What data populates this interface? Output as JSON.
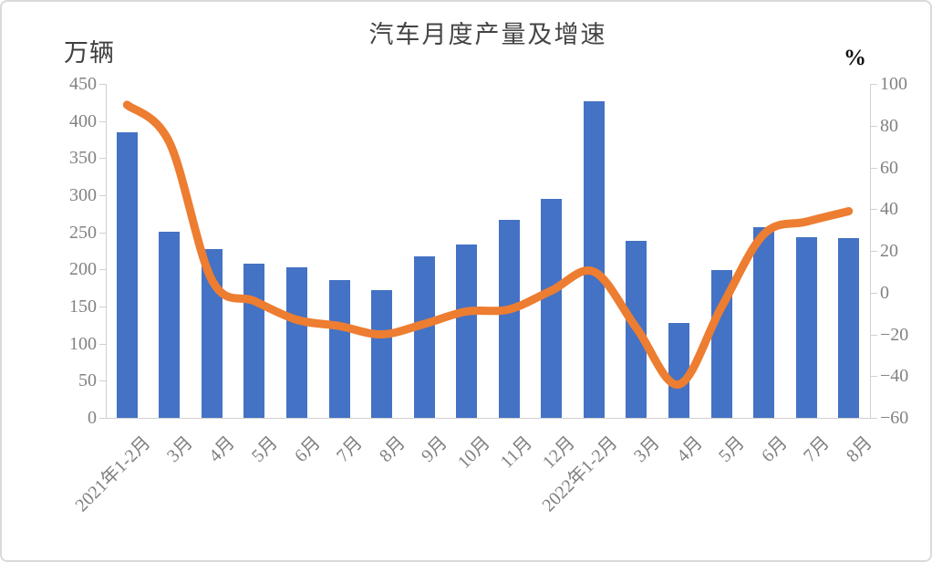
{
  "chart_data": {
    "type": "bar",
    "combo": "bar+line",
    "title": "汽车月度产量及增速",
    "categories": [
      "2021年1-2月",
      "3月",
      "4月",
      "5月",
      "6月",
      "7月",
      "8月",
      "9月",
      "10月",
      "11月",
      "12月",
      "2022年1-2月",
      "3月",
      "4月",
      "5月",
      "6月",
      "7月",
      "8月"
    ],
    "series": [
      {
        "name": "产量",
        "type": "bar",
        "axis": "left",
        "unit": "万辆",
        "color": "#4472C4",
        "values": [
          385,
          251,
          227,
          208,
          203,
          186,
          172,
          218,
          234,
          267,
          295,
          427,
          238,
          128,
          199,
          257,
          244,
          242
        ]
      },
      {
        "name": "增速",
        "type": "line",
        "axis": "right",
        "unit": "%",
        "color": "#ED7D31",
        "values": [
          90,
          72,
          6,
          -4,
          -13,
          -16,
          -20,
          -15,
          -9,
          -8,
          1,
          10,
          -17,
          -44,
          -7,
          28,
          34,
          39
        ]
      }
    ],
    "left_axis": {
      "unit": "万辆",
      "min": 0,
      "max": 450,
      "step": 50,
      "tick_labels": [
        "450",
        "400",
        "350",
        "300",
        "250",
        "200",
        "150",
        "100",
        "50",
        "0"
      ]
    },
    "right_axis": {
      "unit": "%",
      "min": -60,
      "max": 100,
      "step": 20,
      "tick_labels": [
        "100",
        "80",
        "60",
        "40",
        "20",
        "0",
        "−20",
        "−40",
        "−60"
      ]
    },
    "grid": false,
    "legend": "none"
  }
}
